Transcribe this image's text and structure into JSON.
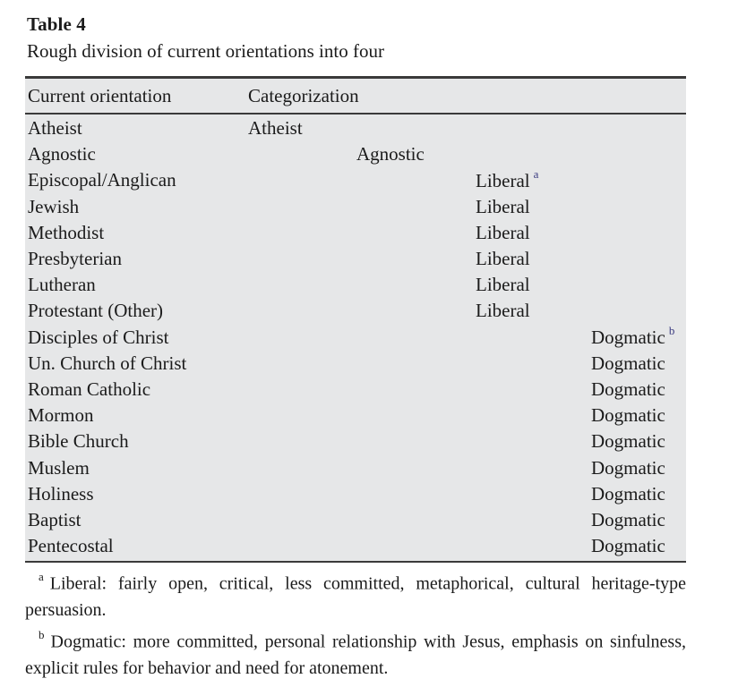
{
  "title": "Table 4",
  "caption": "Rough division of current orientations into four",
  "table": {
    "headers": {
      "orientation": "Current orientation",
      "categorization": "Categorization"
    },
    "categories": [
      "Atheist",
      "Agnostic",
      "Liberal",
      "Dogmatic"
    ],
    "rows": [
      {
        "orientation": "Atheist",
        "category": "Atheist",
        "sup": ""
      },
      {
        "orientation": "Agnostic",
        "category": "Agnostic",
        "sup": ""
      },
      {
        "orientation": "Episcopal/Anglican",
        "category": "Liberal",
        "sup": "a"
      },
      {
        "orientation": "Jewish",
        "category": "Liberal",
        "sup": ""
      },
      {
        "orientation": "Methodist",
        "category": "Liberal",
        "sup": ""
      },
      {
        "orientation": "Presbyterian",
        "category": "Liberal",
        "sup": ""
      },
      {
        "orientation": "Lutheran",
        "category": "Liberal",
        "sup": ""
      },
      {
        "orientation": "Protestant (Other)",
        "category": "Liberal",
        "sup": ""
      },
      {
        "orientation": "Disciples of Christ",
        "category": "Dogmatic",
        "sup": "b"
      },
      {
        "orientation": "Un. Church of Christ",
        "category": "Dogmatic",
        "sup": ""
      },
      {
        "orientation": "Roman Catholic",
        "category": "Dogmatic",
        "sup": ""
      },
      {
        "orientation": "Mormon",
        "category": "Dogmatic",
        "sup": ""
      },
      {
        "orientation": "Bible Church",
        "category": "Dogmatic",
        "sup": ""
      },
      {
        "orientation": "Muslem",
        "category": "Dogmatic",
        "sup": ""
      },
      {
        "orientation": "Holiness",
        "category": "Dogmatic",
        "sup": ""
      },
      {
        "orientation": "Baptist",
        "category": "Dogmatic",
        "sup": ""
      },
      {
        "orientation": "Pentecostal",
        "category": "Dogmatic",
        "sup": ""
      }
    ]
  },
  "footnotes": [
    {
      "marker": "a",
      "text": "Liberal: fairly open, critical, less committed, metaphorical, cultural heritage-type persuasion."
    },
    {
      "marker": "b",
      "text": "Dogmatic: more committed, personal relationship with Jesus, emphasis on sinfulness, explicit rules for behavior and need for atonement."
    }
  ],
  "colors": {
    "table_bg": "#e6e7e8",
    "text": "#1b1b1b",
    "superscript": "#3b3b80",
    "border": "#3a3a3a"
  }
}
